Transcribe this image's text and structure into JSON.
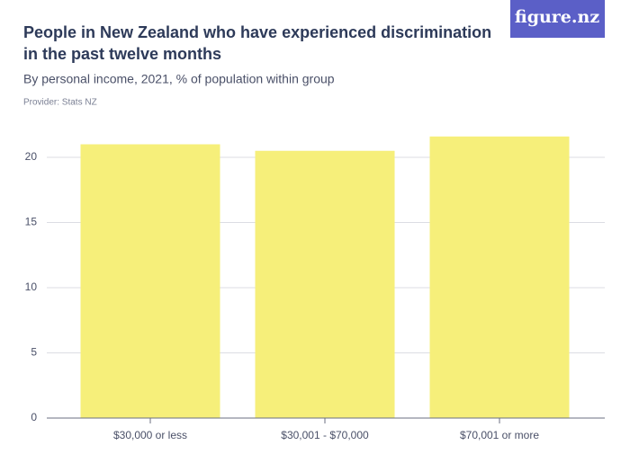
{
  "chart_data": {
    "type": "bar",
    "title": "People in New Zealand who have experienced discrimination in the past twelve months",
    "subtitle": "By personal income, 2021, % of population within group",
    "provider": "Provider: Stats NZ",
    "logo": "figure.nz",
    "categories": [
      "$30,000 or less",
      "$30,001 - $70,000",
      "$70,001 or more"
    ],
    "values": [
      21.0,
      20.5,
      21.6
    ],
    "color": "#f6ef7a",
    "ylim": [
      0,
      22
    ],
    "yticks": [
      0,
      5,
      10,
      15,
      20
    ],
    "grid": true
  }
}
